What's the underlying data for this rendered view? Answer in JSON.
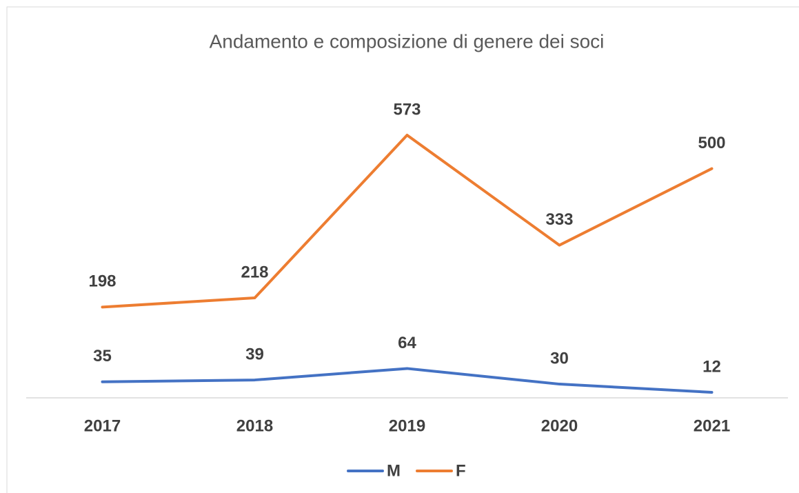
{
  "chart_data": {
    "type": "line",
    "title": "Andamento e composizione di genere dei soci",
    "categories": [
      "2017",
      "2018",
      "2019",
      "2020",
      "2021"
    ],
    "series": [
      {
        "name": "M",
        "color": "#4472c4",
        "values": [
          35,
          39,
          64,
          30,
          12
        ]
      },
      {
        "name": "F",
        "color": "#ed7d31",
        "values": [
          198,
          218,
          573,
          333,
          500
        ]
      }
    ],
    "ylim": [
      0,
      700
    ],
    "legend": "bottom"
  }
}
